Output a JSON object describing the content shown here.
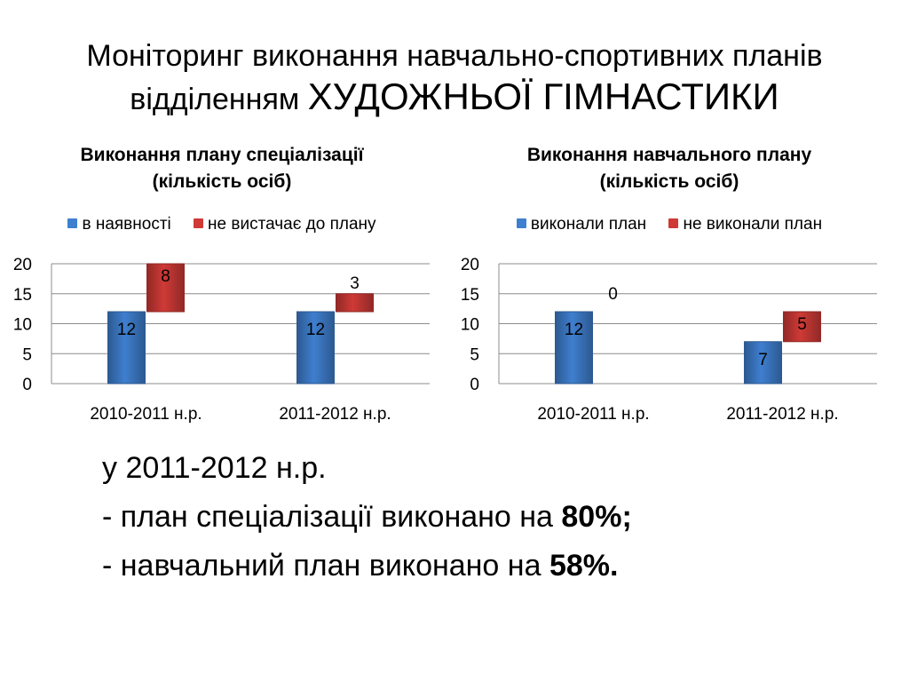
{
  "slide": {
    "title_line1": "Моніторинг виконання навчально-спортивних планів",
    "title_line2_prefix": "відділенням",
    "title_line2_emphasis": "ХУДОЖНЬОЇ ГІМНАСТИКИ"
  },
  "chart_data": [
    {
      "type": "bar",
      "stacked": true,
      "title": "Виконання плану спеціалізації (кількість осіб)",
      "title_lines": [
        "Виконання плану спеціалізації",
        "(кількість осіб)"
      ],
      "categories": [
        "2010-2011 н.р.",
        "2011-2012 н.р."
      ],
      "series": [
        {
          "name": "в наявності",
          "values": [
            12,
            12
          ],
          "color": "#3f7fcf"
        },
        {
          "name": "не вистачає до плану",
          "values": [
            8,
            3
          ],
          "color": "#cf3a36"
        }
      ],
      "ylim": [
        0,
        20
      ],
      "yticks": [
        0,
        5,
        10,
        15,
        20
      ],
      "grid": true,
      "legend_position": "top"
    },
    {
      "type": "bar",
      "stacked": true,
      "title": "Виконання навчального плану (кількість осіб)",
      "title_lines": [
        "Виконання навчального плану",
        "(кількість осіб)"
      ],
      "categories": [
        "2010-2011 н.р.",
        "2011-2012 н.р."
      ],
      "series": [
        {
          "name": "виконали план",
          "values": [
            12,
            7
          ],
          "color": "#3f7fcf"
        },
        {
          "name": "не виконали план",
          "values": [
            0,
            5
          ],
          "color": "#cf3a36"
        }
      ],
      "ylim": [
        0,
        20
      ],
      "yticks": [
        0,
        5,
        10,
        15,
        20
      ],
      "grid": true,
      "legend_position": "top"
    }
  ],
  "summary": {
    "line1": "у 2011-2012 н.р.",
    "line2_text": "- план спеціалізації виконано на ",
    "line2_value": "80%;",
    "line3_text": "- навчальний план виконано  на ",
    "line3_value": "58%."
  }
}
